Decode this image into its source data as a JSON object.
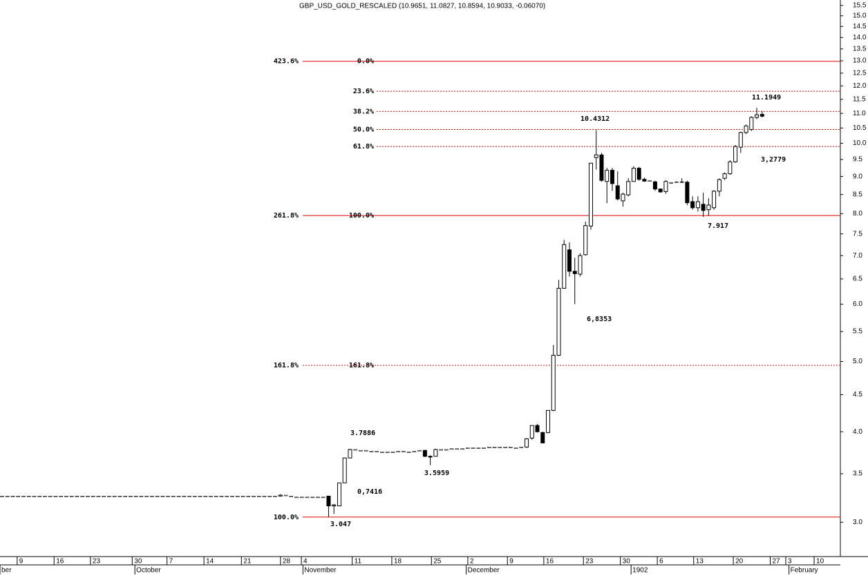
{
  "chart_data": {
    "type": "candlestick",
    "title": "GBP_USD_GOLD_RESCALED (10.9651, 11.0827, 10.8594, 10.9033, -0.06070)",
    "log_y": true,
    "ylim": [
      2.69,
      15.77
    ],
    "xlim": [
      0,
      157
    ],
    "yticks": [
      {
        "value": 3,
        "label": "3.0"
      },
      3.5,
      {
        "value": 4,
        "label": "4.0"
      },
      4.5,
      {
        "value": 5,
        "label": "5.0"
      },
      5.5,
      {
        "value": 6,
        "label": "6.0"
      },
      6.5,
      {
        "value": 7,
        "label": "7.0"
      },
      7.5,
      {
        "value": 8,
        "label": "8.0"
      },
      8.5,
      {
        "value": 9,
        "label": "9.0"
      },
      9.5,
      {
        "value": 10,
        "label": "10.0"
      },
      10.5,
      {
        "value": 11,
        "label": "11.0"
      },
      11.5,
      {
        "value": 12,
        "label": "12.0"
      },
      12.5,
      {
        "value": 13,
        "label": "13.0"
      },
      13.5,
      {
        "value": 14,
        "label": "14.0"
      },
      14.5,
      {
        "value": 15,
        "label": "15.0"
      },
      15.5
    ],
    "xticks": [
      {
        "value": 3.2,
        "label": "9"
      },
      {
        "value": 10.1,
        "label": "16"
      },
      {
        "value": 16.9,
        "label": "23"
      },
      {
        "value": 24.7,
        "label": "30"
      },
      {
        "value": 31.2,
        "label": "7"
      },
      {
        "value": 38.1,
        "label": "14"
      },
      {
        "value": 45.1,
        "label": "21"
      },
      {
        "value": 52.4,
        "label": "28"
      },
      {
        "value": 56.3,
        "label": "4"
      },
      {
        "value": 65.8,
        "label": "11"
      },
      {
        "value": 73.2,
        "label": "18"
      },
      {
        "value": 80.6,
        "label": "25"
      },
      {
        "value": 87.4,
        "label": "2"
      },
      {
        "value": 94.8,
        "label": "9"
      },
      {
        "value": 101.6,
        "label": "16"
      },
      {
        "value": 109,
        "label": "23"
      },
      {
        "value": 115.9,
        "label": "30"
      },
      {
        "value": 122.8,
        "label": "6"
      },
      {
        "value": 129.6,
        "label": "13"
      },
      {
        "value": 137,
        "label": "20"
      },
      {
        "value": 143.9,
        "label": "27"
      },
      {
        "value": 146.8,
        "label": "3"
      },
      {
        "value": 152.1,
        "label": "10"
      }
    ],
    "month_ticks": [
      {
        "value": 0,
        "label": "ber"
      },
      {
        "value": 25.2,
        "label": "October"
      },
      {
        "value": 56.6,
        "label": "November"
      },
      {
        "value": 87.1,
        "label": "December"
      },
      {
        "value": 117.9,
        "label": "1902"
      },
      {
        "value": 147.4,
        "label": "February"
      }
    ],
    "candle_color": "#000000",
    "level_color": "#e00000",
    "annotation_color": "#000080",
    "candles": [
      [
        0,
        3.26,
        3.26,
        3.26,
        3.26
      ],
      [
        1,
        3.26,
        3.26,
        3.26,
        3.26
      ],
      [
        2,
        3.26,
        3.26,
        3.26,
        3.26
      ],
      [
        3,
        3.26,
        3.26,
        3.26,
        3.26
      ],
      [
        4,
        3.26,
        3.26,
        3.26,
        3.26
      ],
      [
        5,
        3.26,
        3.26,
        3.26,
        3.26
      ],
      [
        6,
        3.26,
        3.26,
        3.26,
        3.26
      ],
      [
        7,
        3.26,
        3.26,
        3.26,
        3.26
      ],
      [
        8,
        3.26,
        3.26,
        3.26,
        3.26
      ],
      [
        9,
        3.26,
        3.26,
        3.26,
        3.26
      ],
      [
        10,
        3.26,
        3.26,
        3.26,
        3.26
      ],
      [
        11,
        3.26,
        3.26,
        3.26,
        3.26
      ],
      [
        12,
        3.26,
        3.26,
        3.26,
        3.26
      ],
      [
        13,
        3.26,
        3.26,
        3.26,
        3.26
      ],
      [
        14,
        3.26,
        3.26,
        3.26,
        3.26
      ],
      [
        15,
        3.26,
        3.26,
        3.26,
        3.26
      ],
      [
        16,
        3.26,
        3.26,
        3.26,
        3.26
      ],
      [
        17,
        3.26,
        3.26,
        3.26,
        3.26
      ],
      [
        18,
        3.26,
        3.26,
        3.26,
        3.26
      ],
      [
        19,
        3.26,
        3.26,
        3.26,
        3.26
      ],
      [
        20,
        3.26,
        3.26,
        3.26,
        3.26
      ],
      [
        21,
        3.26,
        3.26,
        3.26,
        3.26
      ],
      [
        22,
        3.26,
        3.26,
        3.26,
        3.26
      ],
      [
        23,
        3.26,
        3.26,
        3.26,
        3.26
      ],
      [
        24,
        3.26,
        3.26,
        3.26,
        3.26
      ],
      [
        25,
        3.26,
        3.26,
        3.26,
        3.26
      ],
      [
        26,
        3.26,
        3.26,
        3.26,
        3.26
      ],
      [
        27,
        3.26,
        3.26,
        3.26,
        3.26
      ],
      [
        28,
        3.26,
        3.26,
        3.26,
        3.26
      ],
      [
        29,
        3.26,
        3.26,
        3.26,
        3.26
      ],
      [
        30,
        3.26,
        3.26,
        3.26,
        3.26
      ],
      [
        31,
        3.26,
        3.26,
        3.26,
        3.26
      ],
      [
        32,
        3.26,
        3.26,
        3.26,
        3.26
      ],
      [
        33,
        3.26,
        3.26,
        3.26,
        3.26
      ],
      [
        34,
        3.26,
        3.26,
        3.26,
        3.26
      ],
      [
        35,
        3.26,
        3.26,
        3.26,
        3.26
      ],
      [
        36,
        3.26,
        3.26,
        3.26,
        3.26
      ],
      [
        37,
        3.26,
        3.26,
        3.26,
        3.26
      ],
      [
        38,
        3.26,
        3.26,
        3.26,
        3.26
      ],
      [
        39,
        3.26,
        3.26,
        3.26,
        3.26
      ],
      [
        40,
        3.26,
        3.26,
        3.26,
        3.26
      ],
      [
        41,
        3.26,
        3.26,
        3.26,
        3.26
      ],
      [
        42,
        3.26,
        3.26,
        3.26,
        3.26
      ],
      [
        43,
        3.26,
        3.26,
        3.26,
        3.26
      ],
      [
        44,
        3.26,
        3.26,
        3.26,
        3.26
      ],
      [
        45,
        3.26,
        3.26,
        3.26,
        3.26
      ],
      [
        46,
        3.26,
        3.26,
        3.26,
        3.26
      ],
      [
        47,
        3.26,
        3.26,
        3.26,
        3.26
      ],
      [
        48,
        3.26,
        3.26,
        3.26,
        3.26
      ],
      [
        49,
        3.26,
        3.26,
        3.26,
        3.26
      ],
      [
        50,
        3.26,
        3.26,
        3.26,
        3.26
      ],
      [
        51,
        3.26,
        3.26,
        3.26,
        3.26
      ],
      [
        52,
        3.26,
        3.28,
        3.26,
        3.27
      ],
      [
        53,
        3.27,
        3.27,
        3.27,
        3.27
      ],
      [
        54,
        3.26,
        3.26,
        3.26,
        3.26
      ],
      [
        55,
        3.25,
        3.25,
        3.25,
        3.25
      ],
      [
        56,
        3.25,
        3.25,
        3.25,
        3.25
      ],
      [
        57,
        3.25,
        3.25,
        3.25,
        3.25
      ],
      [
        58,
        3.25,
        3.25,
        3.25,
        3.25
      ],
      [
        59,
        3.25,
        3.25,
        3.25,
        3.25
      ],
      [
        60,
        3.25,
        3.25,
        3.25,
        3.25
      ],
      [
        61,
        3.26,
        3.26,
        3.047,
        3.16
      ],
      [
        62,
        3.16,
        3.18,
        3.08,
        3.17
      ],
      [
        63,
        3.16,
        3.4,
        3.16,
        3.4
      ],
      [
        64,
        3.4,
        3.68,
        3.4,
        3.68
      ],
      [
        65,
        3.68,
        3.7886,
        3.68,
        3.78
      ],
      [
        66,
        3.78,
        3.78,
        3.78,
        3.78
      ],
      [
        67,
        3.77,
        3.77,
        3.77,
        3.77
      ],
      [
        68,
        3.77,
        3.77,
        3.77,
        3.77
      ],
      [
        69,
        3.76,
        3.76,
        3.76,
        3.76
      ],
      [
        70,
        3.76,
        3.76,
        3.76,
        3.76
      ],
      [
        71,
        3.75,
        3.75,
        3.75,
        3.75
      ],
      [
        72,
        3.75,
        3.75,
        3.75,
        3.75
      ],
      [
        73,
        3.75,
        3.75,
        3.75,
        3.75
      ],
      [
        74,
        3.76,
        3.76,
        3.76,
        3.76
      ],
      [
        75,
        3.76,
        3.76,
        3.76,
        3.76
      ],
      [
        76,
        3.75,
        3.75,
        3.75,
        3.75
      ],
      [
        77,
        3.76,
        3.76,
        3.76,
        3.76
      ],
      [
        78,
        3.77,
        3.77,
        3.77,
        3.77
      ],
      [
        79,
        3.77,
        3.77,
        3.69,
        3.7
      ],
      [
        80,
        3.7,
        3.71,
        3.5959,
        3.69
      ],
      [
        81,
        3.7,
        3.79,
        3.7,
        3.78
      ],
      [
        82,
        3.78,
        3.78,
        3.78,
        3.78
      ],
      [
        83,
        3.78,
        3.78,
        3.78,
        3.78
      ],
      [
        84,
        3.79,
        3.79,
        3.79,
        3.79
      ],
      [
        85,
        3.79,
        3.79,
        3.79,
        3.79
      ],
      [
        86,
        3.79,
        3.79,
        3.79,
        3.79
      ],
      [
        87,
        3.8,
        3.8,
        3.8,
        3.8
      ],
      [
        88,
        3.8,
        3.8,
        3.8,
        3.8
      ],
      [
        89,
        3.8,
        3.8,
        3.8,
        3.8
      ],
      [
        90,
        3.8,
        3.8,
        3.8,
        3.8
      ],
      [
        91,
        3.81,
        3.81,
        3.81,
        3.81
      ],
      [
        92,
        3.81,
        3.81,
        3.81,
        3.81
      ],
      [
        93,
        3.81,
        3.81,
        3.81,
        3.81
      ],
      [
        94,
        3.81,
        3.81,
        3.81,
        3.81
      ],
      [
        95,
        3.81,
        3.81,
        3.81,
        3.81
      ],
      [
        96,
        3.8,
        3.8,
        3.8,
        3.8
      ],
      [
        97,
        3.81,
        3.81,
        3.81,
        3.81
      ],
      [
        98,
        3.81,
        3.92,
        3.8,
        3.91
      ],
      [
        99,
        3.92,
        4.08,
        3.9,
        4.08
      ],
      [
        100,
        4.08,
        4.1,
        3.99,
        4.0
      ],
      [
        101,
        3.99,
        4.0,
        3.86,
        3.86
      ],
      [
        102,
        3.99,
        4.28,
        3.98,
        4.28
      ],
      [
        103,
        4.28,
        5.27,
        4.27,
        5.1
      ],
      [
        104,
        5.1,
        6.48,
        5.09,
        6.31
      ],
      [
        105,
        6.31,
        7.36,
        6.3,
        7.25
      ],
      [
        106,
        7.13,
        7.3,
        6.55,
        6.66
      ],
      [
        107,
        6.66,
        6.95,
        6.0,
        6.61
      ],
      [
        108,
        6.6,
        7.05,
        6.55,
        7.0
      ],
      [
        109,
        7.02,
        7.8,
        7.0,
        7.7
      ],
      [
        110,
        7.69,
        9.39,
        7.6,
        9.39
      ],
      [
        111,
        9.56,
        10.4312,
        9.2,
        9.64
      ],
      [
        112,
        9.64,
        9.7,
        8.85,
        8.89
      ],
      [
        113,
        8.86,
        9.25,
        8.27,
        9.18
      ],
      [
        114,
        9.18,
        9.25,
        8.6,
        8.8
      ],
      [
        115,
        8.74,
        9.15,
        8.34,
        8.38
      ],
      [
        116,
        8.33,
        8.55,
        8.18,
        8.51
      ],
      [
        117,
        8.49,
        8.95,
        8.45,
        8.86
      ],
      [
        118,
        8.86,
        9.3,
        8.86,
        9.24
      ],
      [
        119,
        9.24,
        9.28,
        8.88,
        8.92
      ],
      [
        120,
        8.92,
        8.97,
        8.85,
        8.87
      ],
      [
        121,
        8.88,
        8.88,
        8.88,
        8.88
      ],
      [
        122,
        8.85,
        8.88,
        8.6,
        8.65
      ],
      [
        123,
        8.65,
        8.66,
        8.55,
        8.57
      ],
      [
        124,
        8.58,
        8.9,
        8.52,
        8.86
      ],
      [
        125,
        8.82,
        8.84,
        8.8,
        8.83
      ],
      [
        126,
        8.84,
        8.87,
        8.82,
        8.85
      ],
      [
        127,
        8.85,
        8.95,
        8.83,
        8.84
      ],
      [
        128,
        8.84,
        8.88,
        8.22,
        8.28
      ],
      [
        129,
        8.31,
        8.45,
        8.1,
        8.15
      ],
      [
        130,
        8.15,
        8.45,
        8.05,
        8.31
      ],
      [
        131,
        8.24,
        8.55,
        7.917,
        8.08
      ],
      [
        132,
        8.1,
        8.4,
        7.94,
        8.22
      ],
      [
        133,
        8.15,
        8.62,
        8.1,
        8.59
      ],
      [
        134,
        8.59,
        8.95,
        8.45,
        8.91
      ],
      [
        135,
        8.95,
        9.12,
        8.9,
        9.08
      ],
      [
        136,
        9.08,
        9.48,
        9.05,
        9.43
      ],
      [
        137,
        9.43,
        9.95,
        9.4,
        9.9
      ],
      [
        138,
        9.88,
        10.38,
        9.7,
        10.35
      ],
      [
        139,
        10.35,
        10.62,
        10.3,
        10.57
      ],
      [
        140,
        10.45,
        10.9,
        10.4,
        10.86
      ],
      [
        141,
        10.86,
        11.1949,
        10.8,
        10.95
      ],
      [
        142,
        10.9651,
        11.0827,
        10.8594,
        10.9033
      ]
    ],
    "levels": [
      {
        "value": 12.98,
        "outer": "423.6%",
        "inner": "0.0%",
        "style": "solid"
      },
      {
        "value": 11.8,
        "inner": "23.6%",
        "style": "dotted"
      },
      {
        "value": 11.07,
        "inner": "38.2%",
        "style": "dotted"
      },
      {
        "value": 10.45,
        "inner": "50.0%",
        "style": "dotted"
      },
      {
        "value": 9.9,
        "inner": "61.8%",
        "style": "dotted"
      },
      {
        "value": 7.95,
        "outer": "261.8%",
        "inner": "100.0%",
        "style": "solid"
      },
      {
        "value": 4.94,
        "outer": "161.8%",
        "inner": "161.8%",
        "style": "dotted"
      },
      {
        "value": 3.05,
        "outer": "100.0%",
        "style": "solid"
      }
    ],
    "annotations": [
      "11.1949",
      "10.4312",
      "3,2779",
      "7.917",
      "6,8353",
      "3.7886",
      "0,7416",
      "3.5959",
      "3.047"
    ]
  }
}
